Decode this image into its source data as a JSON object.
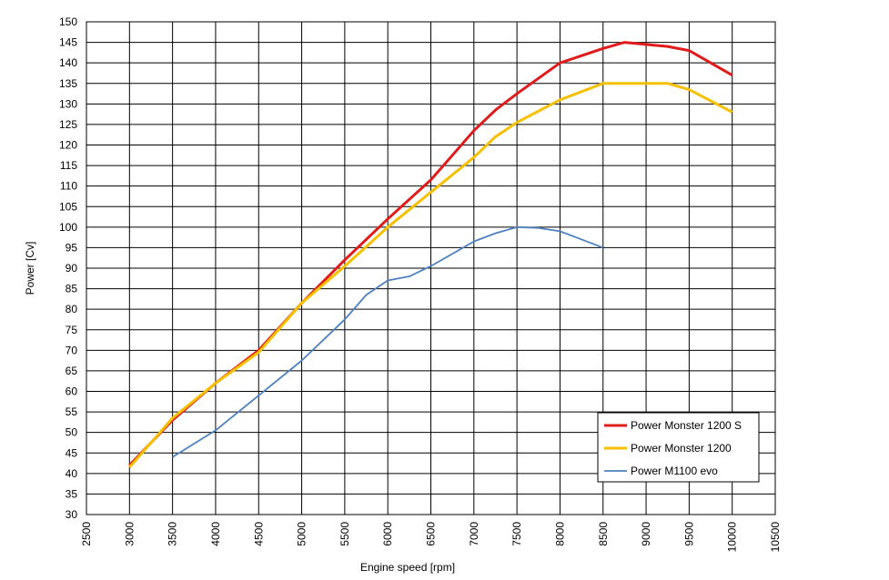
{
  "chart_data": {
    "type": "line",
    "xlabel": "Engine speed [rpm]",
    "ylabel": "Power [Cv]",
    "xlim": [
      2500,
      10500
    ],
    "ylim": [
      30,
      150
    ],
    "xticks": [
      "2500",
      "3000",
      "3500",
      "4000",
      "4500",
      "5000",
      "5500",
      "6000",
      "6500",
      "7000",
      "7500",
      "8000",
      "8500",
      "9000",
      "9500",
      "10000",
      "10500"
    ],
    "yticks": [
      "30",
      "35",
      "40",
      "45",
      "50",
      "55",
      "60",
      "65",
      "70",
      "75",
      "80",
      "85",
      "90",
      "95",
      "100",
      "105",
      "110",
      "115",
      "120",
      "125",
      "130",
      "135",
      "140",
      "145",
      "150"
    ],
    "grid": true,
    "legend_position": "bottom-right",
    "series": [
      {
        "name": "Power Monster 1200 S",
        "color": "#e01b1b",
        "width": 3,
        "points": [
          [
            3000,
            42
          ],
          [
            3500,
            53
          ],
          [
            4000,
            62
          ],
          [
            4500,
            70
          ],
          [
            5000,
            81.5
          ],
          [
            5500,
            92
          ],
          [
            6000,
            102
          ],
          [
            6500,
            111.5
          ],
          [
            7000,
            123.5
          ],
          [
            7250,
            128.5
          ],
          [
            7500,
            132.5
          ],
          [
            8000,
            140
          ],
          [
            8500,
            143.5
          ],
          [
            8750,
            145
          ],
          [
            9000,
            144.5
          ],
          [
            9250,
            144
          ],
          [
            9500,
            143
          ],
          [
            10000,
            137
          ]
        ]
      },
      {
        "name": "Power Monster 1200",
        "color": "#f5c000",
        "width": 3,
        "points": [
          [
            3000,
            41.5
          ],
          [
            3500,
            53.5
          ],
          [
            4000,
            62
          ],
          [
            4500,
            69.5
          ],
          [
            5000,
            81.5
          ],
          [
            5500,
            90.5
          ],
          [
            6000,
            100
          ],
          [
            6500,
            108.5
          ],
          [
            7000,
            117
          ],
          [
            7250,
            122
          ],
          [
            7500,
            125.5
          ],
          [
            8000,
            131
          ],
          [
            8500,
            135
          ],
          [
            9000,
            135
          ],
          [
            9250,
            135
          ],
          [
            9500,
            133.5
          ],
          [
            10000,
            128
          ]
        ]
      },
      {
        "name": "Power M1100 evo",
        "color": "#4f81bd",
        "width": 1.8,
        "points": [
          [
            3500,
            44
          ],
          [
            4000,
            50.5
          ],
          [
            4500,
            59
          ],
          [
            5000,
            67.5
          ],
          [
            5500,
            77.5
          ],
          [
            5750,
            83.5
          ],
          [
            6000,
            87
          ],
          [
            6250,
            88
          ],
          [
            6500,
            90.5
          ],
          [
            7000,
            96.5
          ],
          [
            7250,
            98.5
          ],
          [
            7500,
            100
          ],
          [
            7750,
            99.8
          ],
          [
            8000,
            99
          ],
          [
            8500,
            95
          ]
        ]
      }
    ]
  }
}
